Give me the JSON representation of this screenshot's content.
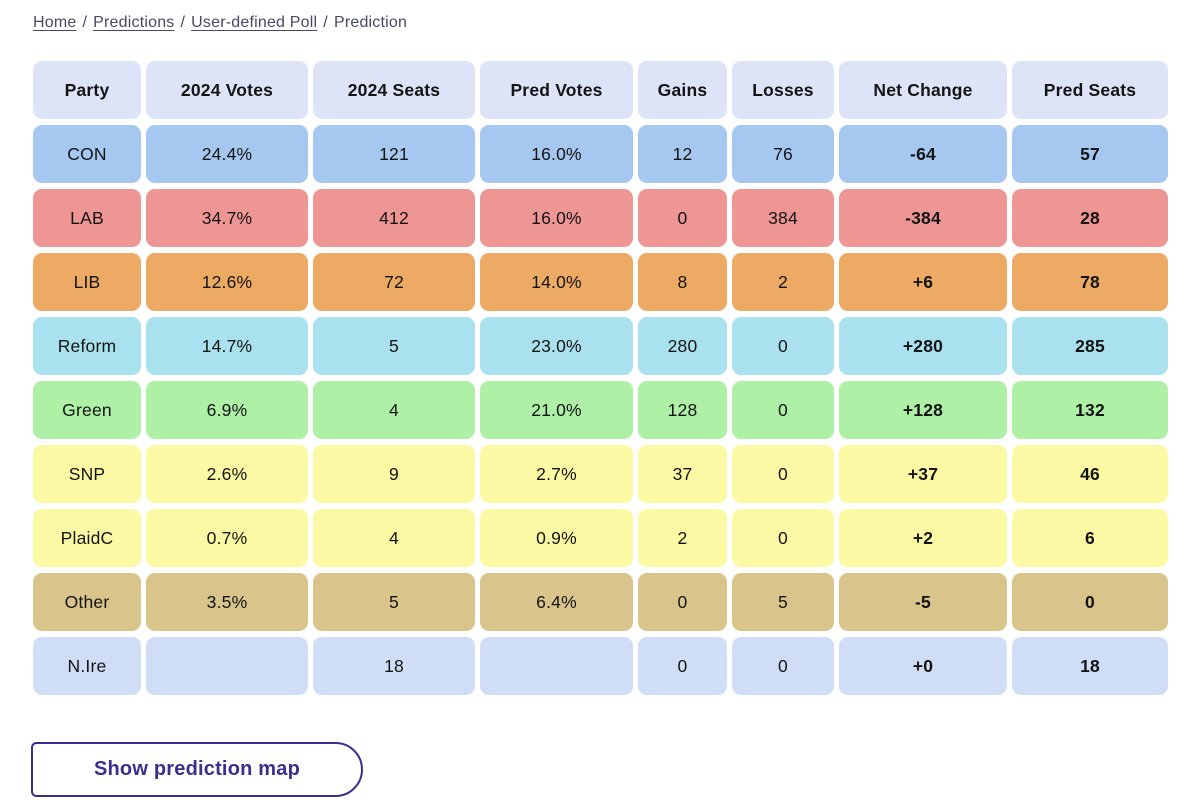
{
  "breadcrumb": {
    "separator": "/",
    "items": [
      {
        "label": "Home",
        "link": true
      },
      {
        "label": "Predictions",
        "link": true
      },
      {
        "label": "User-defined Poll",
        "link": true
      },
      {
        "label": "Prediction",
        "link": false
      }
    ]
  },
  "table": {
    "columns": [
      "Party",
      "2024 Votes",
      "2024 Seats",
      "Pred Votes",
      "Gains",
      "Losses",
      "Net Change",
      "Pred Seats"
    ],
    "field_order": [
      "party",
      "votes2024",
      "seats2024",
      "predVotes",
      "gains",
      "losses",
      "netChange",
      "predSeats"
    ],
    "rows": [
      {
        "party": "CON",
        "votes2024": "24.4%",
        "seats2024": "121",
        "predVotes": "16.0%",
        "gains": "12",
        "losses": "76",
        "netChange": "-64",
        "predSeats": "57",
        "color": "#a6c8f0"
      },
      {
        "party": "LAB",
        "votes2024": "34.7%",
        "seats2024": "412",
        "predVotes": "16.0%",
        "gains": "0",
        "losses": "384",
        "netChange": "-384",
        "predSeats": "28",
        "color": "#ee9694"
      },
      {
        "party": "LIB",
        "votes2024": "12.6%",
        "seats2024": "72",
        "predVotes": "14.0%",
        "gains": "8",
        "losses": "2",
        "netChange": "+6",
        "predSeats": "78",
        "color": "#edaa64"
      },
      {
        "party": "Reform",
        "votes2024": "14.7%",
        "seats2024": "5",
        "predVotes": "23.0%",
        "gains": "280",
        "losses": "0",
        "netChange": "+280",
        "predSeats": "285",
        "color": "#a9e2ee"
      },
      {
        "party": "Green",
        "votes2024": "6.9%",
        "seats2024": "4",
        "predVotes": "21.0%",
        "gains": "128",
        "losses": "0",
        "netChange": "+128",
        "predSeats": "132",
        "color": "#aef0a5"
      },
      {
        "party": "SNP",
        "votes2024": "2.6%",
        "seats2024": "9",
        "predVotes": "2.7%",
        "gains": "37",
        "losses": "0",
        "netChange": "+37",
        "predSeats": "46",
        "color": "#fbf9a3"
      },
      {
        "party": "PlaidC",
        "votes2024": "0.7%",
        "seats2024": "4",
        "predVotes": "0.9%",
        "gains": "2",
        "losses": "0",
        "netChange": "+2",
        "predSeats": "6",
        "color": "#fbf9a3"
      },
      {
        "party": "Other",
        "votes2024": "3.5%",
        "seats2024": "5",
        "predVotes": "6.4%",
        "gains": "0",
        "losses": "5",
        "netChange": "-5",
        "predSeats": "0",
        "color": "#d9c58b"
      },
      {
        "party": "N.Ire",
        "votes2024": "",
        "seats2024": "18",
        "predVotes": "",
        "gains": "0",
        "losses": "0",
        "netChange": "+0",
        "predSeats": "18",
        "color": "#cfdef6"
      }
    ]
  },
  "actions": {
    "show_map_label": "Show prediction map"
  },
  "colors": {
    "header_bg": "#dee4f8",
    "accent": "#3e2d8f",
    "breadcrumb_text": "#474a63",
    "cell_text": "#141414"
  }
}
